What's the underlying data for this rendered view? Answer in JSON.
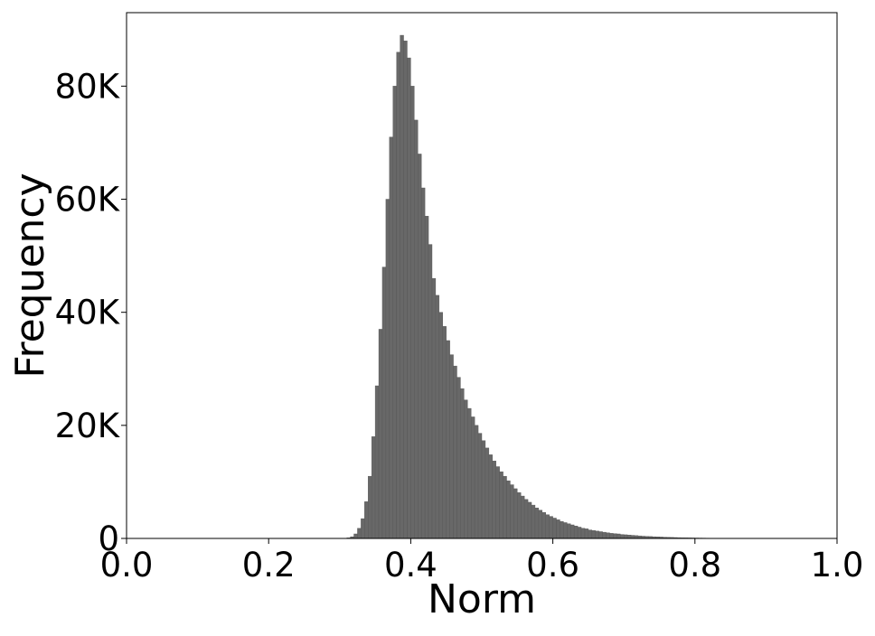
{
  "chart_data": {
    "type": "histogram",
    "x_label": "Norm",
    "y_label": "Frequency",
    "color": "#686868",
    "bins": [
      0.31,
      0.315,
      0.32,
      0.325,
      0.33,
      0.335,
      0.34,
      0.345,
      0.35,
      0.355,
      0.36,
      0.365,
      0.37,
      0.375,
      0.38,
      0.385,
      0.39,
      0.395,
      0.4,
      0.405,
      0.41,
      0.415,
      0.42,
      0.425,
      0.43,
      0.435,
      0.44,
      0.445,
      0.45,
      0.455,
      0.46,
      0.465,
      0.47,
      0.475,
      0.48,
      0.485,
      0.49,
      0.495,
      0.5,
      0.505,
      0.51,
      0.515,
      0.52,
      0.525,
      0.53,
      0.535,
      0.54,
      0.545,
      0.55,
      0.555,
      0.56,
      0.565,
      0.57,
      0.575,
      0.58,
      0.585,
      0.59,
      0.595,
      0.6,
      0.605,
      0.61,
      0.615,
      0.62,
      0.625,
      0.63,
      0.635,
      0.64,
      0.645,
      0.65,
      0.655,
      0.66,
      0.665,
      0.67,
      0.675,
      0.68,
      0.685,
      0.69,
      0.695,
      0.7,
      0.705,
      0.71,
      0.715,
      0.72,
      0.725,
      0.73,
      0.735,
      0.74,
      0.745,
      0.75,
      0.755,
      0.76,
      0.765,
      0.77,
      0.775,
      0.78,
      0.785,
      0.79,
      0.795,
      0.8,
      0.805,
      0.81,
      0.815,
      0.82,
      0.825,
      0.83,
      0.835,
      0.84,
      0.845,
      0.85
    ],
    "values": [
      100,
      300,
      800,
      1800,
      3500,
      6500,
      11000,
      18000,
      27000,
      37000,
      48000,
      60000,
      71000,
      80000,
      86000,
      89000,
      88000,
      85000,
      80000,
      74000,
      68000,
      62000,
      57000,
      52000,
      46000,
      43000,
      40000,
      37500,
      35000,
      32500,
      30500,
      28500,
      26500,
      24500,
      23000,
      21500,
      20000,
      18600,
      17300,
      16000,
      14800,
      13700,
      12700,
      11800,
      11000,
      10200,
      9500,
      8800,
      8100,
      7500,
      6900,
      6400,
      5900,
      5400,
      5000,
      4600,
      4200,
      3900,
      3600,
      3300,
      3000,
      2800,
      2600,
      2400,
      2200,
      2000,
      1800,
      1700,
      1500,
      1400,
      1300,
      1200,
      1100,
      1000,
      900,
      850,
      800,
      700,
      650,
      600,
      550,
      500,
      450,
      400,
      370,
      340,
      300,
      280,
      250,
      220,
      200,
      180,
      160,
      140,
      120,
      110,
      100,
      90,
      80,
      70,
      60,
      50,
      40,
      35,
      30,
      25,
      20,
      15
    ],
    "xlim": [
      0,
      1
    ],
    "xticks": [
      {
        "value": 0,
        "label": "0.0"
      },
      0.2,
      0.4,
      0.6,
      0.8,
      {
        "value": 1,
        "label": "1.0"
      }
    ],
    "ylim": [
      0,
      93000
    ],
    "yticks": [
      0,
      {
        "value": 20000,
        "label": "20K"
      },
      {
        "value": 40000,
        "label": "40K"
      },
      {
        "value": 60000,
        "label": "60K"
      },
      {
        "value": 80000,
        "label": "80K"
      }
    ]
  }
}
